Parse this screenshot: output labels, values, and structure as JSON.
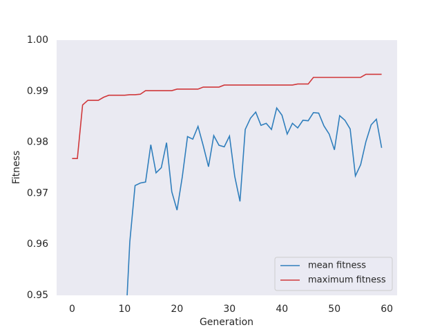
{
  "chart_data": {
    "type": "line",
    "x_label": "Generation",
    "y_label": "Fitness",
    "x": [
      0,
      1,
      2,
      3,
      4,
      5,
      6,
      7,
      8,
      9,
      10,
      11,
      12,
      13,
      14,
      15,
      16,
      17,
      18,
      19,
      20,
      21,
      22,
      23,
      24,
      25,
      26,
      27,
      28,
      29,
      30,
      31,
      32,
      33,
      34,
      35,
      36,
      37,
      38,
      39,
      40,
      41,
      42,
      43,
      44,
      45,
      46,
      47,
      48,
      49,
      50,
      51,
      52,
      53,
      54,
      55,
      56,
      57,
      58,
      59
    ],
    "series": [
      {
        "name": "mean fitness",
        "color": "#2f7ebc",
        "values": [
          null,
          null,
          null,
          null,
          null,
          null,
          null,
          null,
          null,
          null,
          0.94,
          0.9605,
          0.9715,
          0.972,
          0.9722,
          0.9795,
          0.974,
          0.975,
          0.9799,
          0.9703,
          0.9667,
          0.9732,
          0.9811,
          0.9806,
          0.9831,
          0.9793,
          0.9752,
          0.9813,
          0.9794,
          0.9791,
          0.9812,
          0.9733,
          0.9684,
          0.9825,
          0.9847,
          0.9859,
          0.9833,
          0.9837,
          0.9825,
          0.9867,
          0.9853,
          0.9816,
          0.9837,
          0.9828,
          0.9843,
          0.9842,
          0.9858,
          0.9857,
          0.9832,
          0.9816,
          0.9785,
          0.9852,
          0.9843,
          0.9826,
          0.9734,
          0.9756,
          0.9801,
          0.9834,
          0.9845,
          0.9789
        ]
      },
      {
        "name": "maximum fitness",
        "color": "#d0373a",
        "values": [
          0.9768,
          0.9768,
          0.9873,
          0.9882,
          0.9882,
          0.9882,
          0.9888,
          0.9892,
          0.9892,
          0.9892,
          0.9892,
          0.9893,
          0.9893,
          0.9894,
          0.9901,
          0.9901,
          0.9901,
          0.9901,
          0.9901,
          0.9901,
          0.9904,
          0.9904,
          0.9904,
          0.9904,
          0.9904,
          0.9908,
          0.9908,
          0.9908,
          0.9908,
          0.9912,
          0.9912,
          0.9912,
          0.9912,
          0.9912,
          0.9912,
          0.9912,
          0.9912,
          0.9912,
          0.9912,
          0.9912,
          0.9912,
          0.9912,
          0.9912,
          0.9914,
          0.9914,
          0.9914,
          0.9927,
          0.9927,
          0.9927,
          0.9927,
          0.9927,
          0.9927,
          0.9927,
          0.9927,
          0.9927,
          0.9927,
          0.9933,
          0.9933,
          0.9933,
          0.9933
        ]
      }
    ],
    "xlim": [
      -2.95,
      61.95
    ],
    "xticks": [
      0,
      10,
      20,
      30,
      40,
      50,
      60
    ],
    "ylim": [
      0.95,
      1.0
    ],
    "yticks": [
      0.95,
      0.96,
      0.97,
      0.98,
      0.99,
      {
        "value": 1.0,
        "label": "1.00"
      }
    ],
    "grid": false,
    "legend": "lower right",
    "background": "#eaeaf2"
  }
}
